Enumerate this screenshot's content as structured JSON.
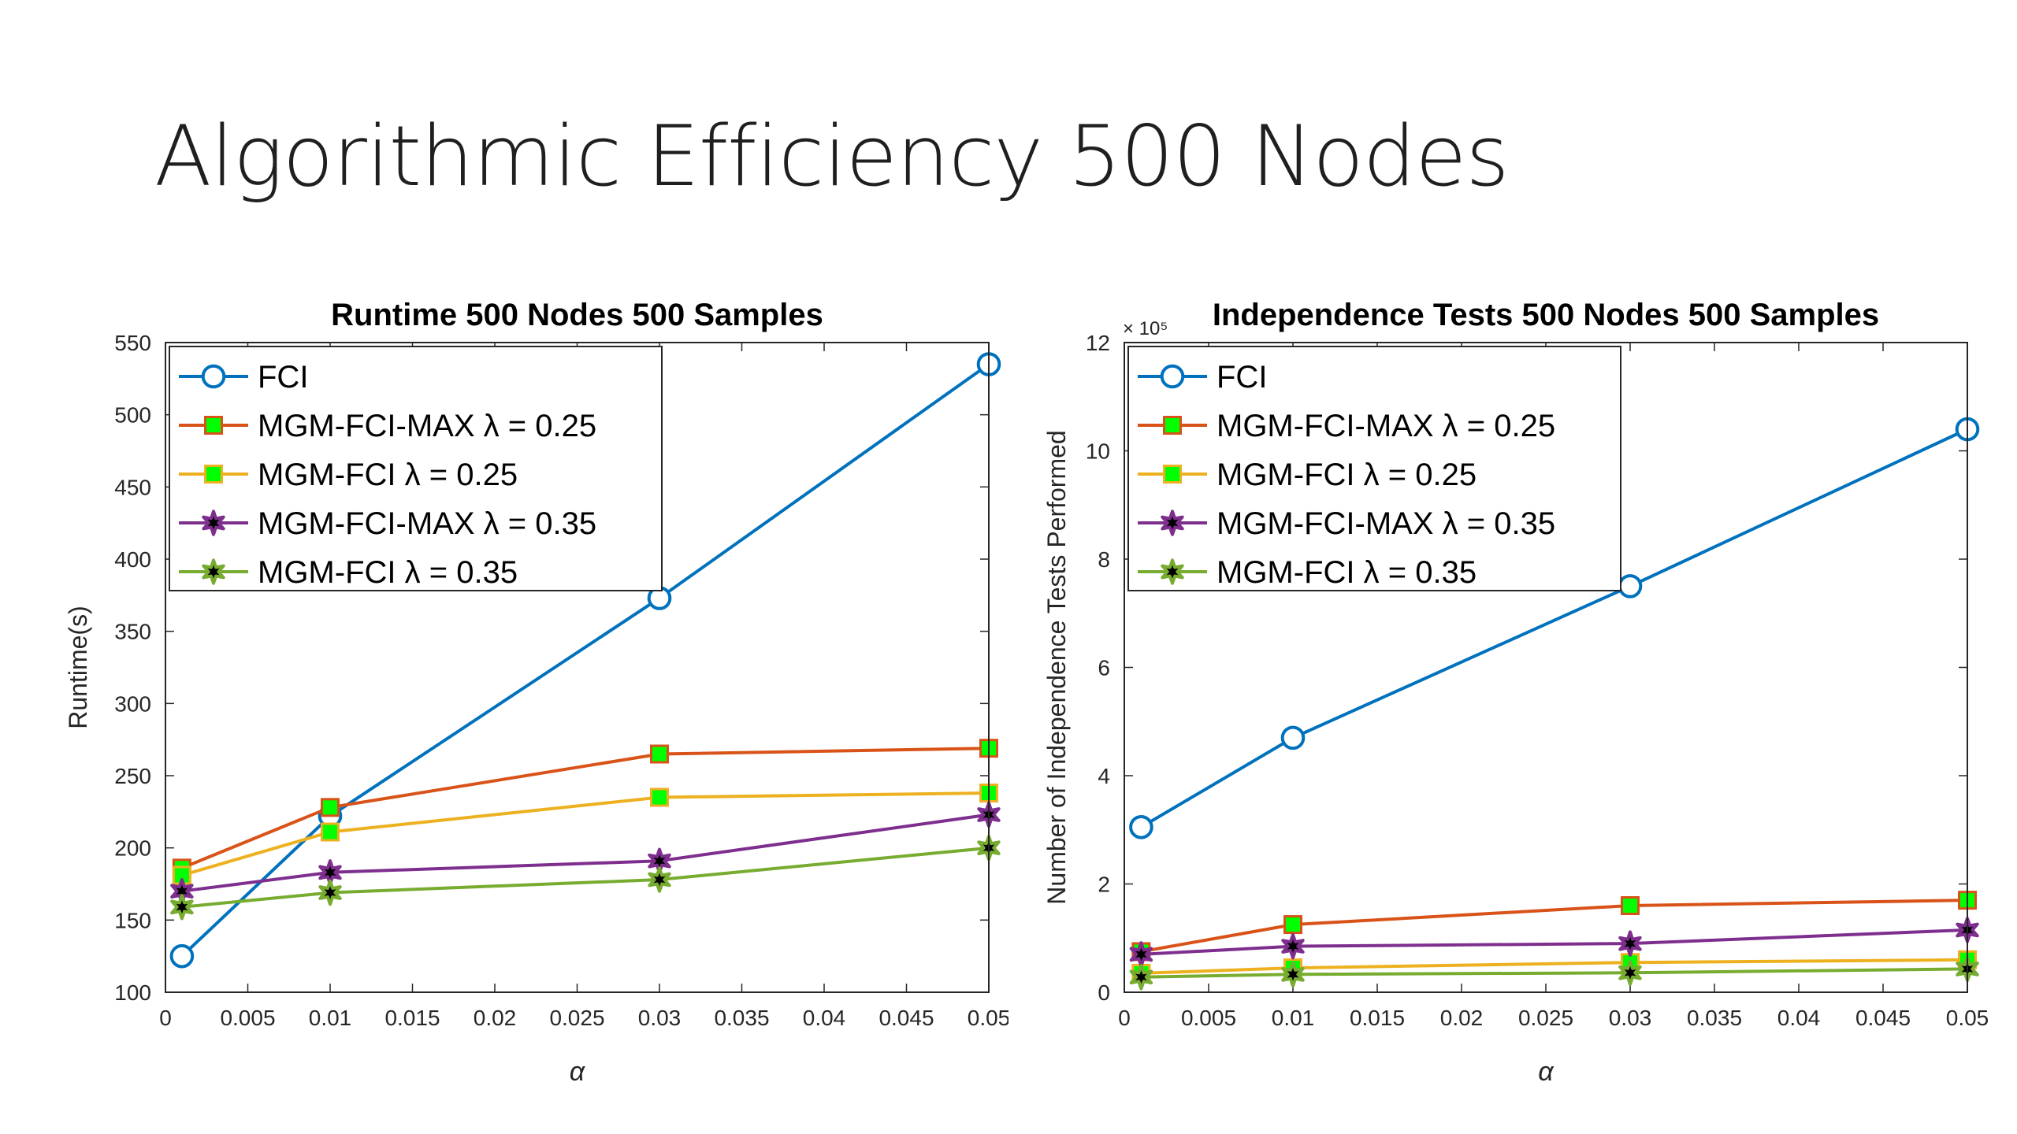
{
  "slide": {
    "title": "Algorithmic Efficiency 500 Nodes"
  },
  "colors": {
    "FCI": "#0072BD",
    "MGM-FCI-MAX_025": "#D95319",
    "MGM-FCI_025": "#EDB120",
    "MGM-FCI-MAX_035": "#7E2F8E",
    "MGM-FCI_035": "#77AC30",
    "marker_green": "#00FF00",
    "marker_star_fill": "#000000"
  },
  "chart_data": [
    {
      "type": "line",
      "title": "Runtime 500 Nodes 500 Samples",
      "xlabel": "α",
      "ylabel": "Runtime(s)",
      "xlim": [
        0,
        0.05
      ],
      "ylim": [
        100,
        550
      ],
      "xticks": [
        0,
        0.005,
        0.01,
        0.015,
        0.02,
        0.025,
        0.03,
        0.035,
        0.04,
        0.045,
        0.05
      ],
      "xtick_labels": [
        "0",
        "0.005",
        "0.01",
        "0.015",
        "0.02",
        "0.025",
        "0.03",
        "0.035",
        "0.04",
        "0.045",
        "0.05"
      ],
      "yticks": [
        100,
        150,
        200,
        250,
        300,
        350,
        400,
        450,
        500,
        550
      ],
      "ytick_labels": [
        "100",
        "150",
        "200",
        "250",
        "300",
        "350",
        "400",
        "450",
        "500",
        "550"
      ],
      "exponent_label": "",
      "legend_position": "top-left",
      "x": [
        0.001,
        0.01,
        0.03,
        0.05
      ],
      "series": [
        {
          "name": "FCI",
          "marker": "circle",
          "color_key": "FCI",
          "values": [
            125,
            222,
            373,
            535
          ]
        },
        {
          "name": "MGM-FCI-MAX λ = 0.25",
          "marker": "square",
          "color_key": "MGM-FCI-MAX_025",
          "values": [
            186,
            228,
            265,
            269
          ]
        },
        {
          "name": "MGM-FCI λ = 0.25",
          "marker": "square",
          "color_key": "MGM-FCI_025",
          "values": [
            181,
            211,
            235,
            238
          ]
        },
        {
          "name": "MGM-FCI-MAX λ = 0.35",
          "marker": "star",
          "color_key": "MGM-FCI-MAX_035",
          "values": [
            170,
            183,
            191,
            223
          ]
        },
        {
          "name": "MGM-FCI λ = 0.35",
          "marker": "star",
          "color_key": "MGM-FCI_035",
          "values": [
            159,
            169,
            178,
            200
          ]
        }
      ]
    },
    {
      "type": "line",
      "title": "Independence Tests 500 Nodes 500 Samples",
      "xlabel": "α",
      "ylabel": "Number of Independence Tests Performed",
      "xlim": [
        0,
        0.05
      ],
      "ylim": [
        0,
        12
      ],
      "xticks": [
        0,
        0.005,
        0.01,
        0.015,
        0.02,
        0.025,
        0.03,
        0.035,
        0.04,
        0.045,
        0.05
      ],
      "xtick_labels": [
        "0",
        "0.005",
        "0.01",
        "0.015",
        "0.02",
        "0.025",
        "0.03",
        "0.035",
        "0.04",
        "0.045",
        "0.05"
      ],
      "yticks": [
        0,
        2,
        4,
        6,
        8,
        10,
        12
      ],
      "ytick_labels": [
        "0",
        "2",
        "4",
        "6",
        "8",
        "10",
        "12"
      ],
      "exponent_label": "× 10⁵",
      "legend_position": "top-left",
      "x": [
        0.001,
        0.01,
        0.03,
        0.05
      ],
      "series": [
        {
          "name": "FCI",
          "marker": "circle",
          "color_key": "FCI",
          "values": [
            3.05,
            4.7,
            7.5,
            10.4
          ]
        },
        {
          "name": "MGM-FCI-MAX λ = 0.25",
          "marker": "square",
          "color_key": "MGM-FCI-MAX_025",
          "values": [
            0.75,
            1.25,
            1.6,
            1.7
          ]
        },
        {
          "name": "MGM-FCI λ = 0.25",
          "marker": "square",
          "color_key": "MGM-FCI_025",
          "values": [
            0.35,
            0.45,
            0.55,
            0.6
          ]
        },
        {
          "name": "MGM-FCI-MAX λ = 0.35",
          "marker": "star",
          "color_key": "MGM-FCI-MAX_035",
          "values": [
            0.7,
            0.85,
            0.9,
            1.15
          ]
        },
        {
          "name": "MGM-FCI λ = 0.35",
          "marker": "star",
          "color_key": "MGM-FCI_035",
          "values": [
            0.28,
            0.33,
            0.36,
            0.43
          ]
        }
      ]
    }
  ]
}
